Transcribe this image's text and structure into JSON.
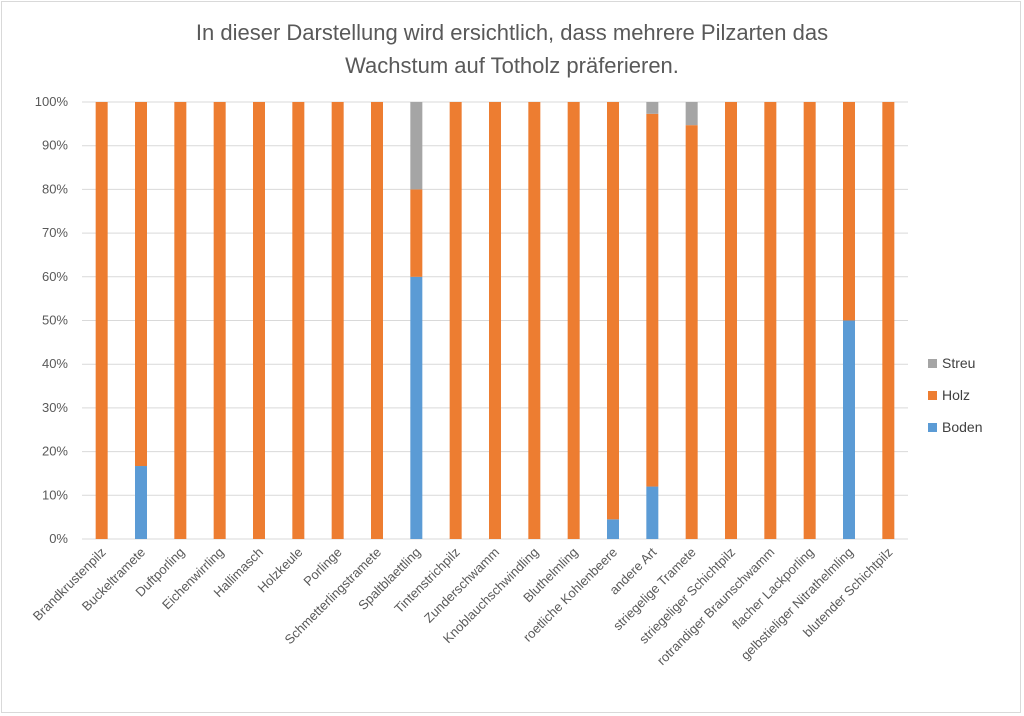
{
  "chart_data": {
    "type": "bar",
    "stacked": true,
    "normalized": true,
    "title": "In dieser Darstellung wird ersichtlich, dass mehrere Pilzarten das Wachstum auf Totholz präferieren.",
    "title_lines": [
      "In dieser Darstellung wird ersichtlich, dass mehrere Pilzarten das",
      "Wachstum auf Totholz präferieren."
    ],
    "xlabel": "",
    "ylabel": "",
    "ylim": [
      0,
      100
    ],
    "ytick_labels": [
      "0%",
      "10%",
      "20%",
      "30%",
      "40%",
      "50%",
      "60%",
      "70%",
      "80%",
      "90%",
      "100%"
    ],
    "grid": true,
    "legend_position": "right",
    "categories": [
      "Brandkrustenpilz",
      "Buckeltramete",
      "Duftporling",
      "Eichenwirrling",
      "Hallimasch",
      "Holzkeule",
      "Porlinge",
      "Schmetterlingstramete",
      "Spaltblaettling",
      "Tintenstrichpilz",
      "Zunderschwamm",
      "Knoblauchschwindling",
      "Bluthelmling",
      "roetliche Kohlenbeere",
      "andere Art",
      "striegelige Tramete",
      "striegeliger Schichtpilz",
      "rotrandiger Braunschwamm",
      "flacher Lackporling",
      "gelbstieliger Nitrathelmling",
      "blutender Schichtpilz"
    ],
    "series": [
      {
        "name": "Boden",
        "color": "#5b9bd5",
        "values": [
          0,
          16.7,
          0,
          0,
          0,
          0,
          0,
          0,
          60,
          0,
          0,
          0,
          0,
          4.5,
          12,
          0,
          0,
          0,
          0,
          50,
          0
        ]
      },
      {
        "name": "Holz",
        "color": "#ed7d31",
        "values": [
          100,
          83.3,
          100,
          100,
          100,
          100,
          100,
          100,
          20,
          100,
          100,
          100,
          100,
          95.5,
          85.3,
          94.7,
          100,
          100,
          100,
          50,
          100
        ]
      },
      {
        "name": "Streu",
        "color": "#a5a5a5",
        "values": [
          0,
          0,
          0,
          0,
          0,
          0,
          0,
          0,
          20,
          0,
          0,
          0,
          0,
          0,
          2.7,
          5.3,
          0,
          0,
          0,
          0,
          0
        ]
      }
    ],
    "legend_order": [
      "Streu",
      "Holz",
      "Boden"
    ],
    "grid_color": "#d9d9d9"
  }
}
